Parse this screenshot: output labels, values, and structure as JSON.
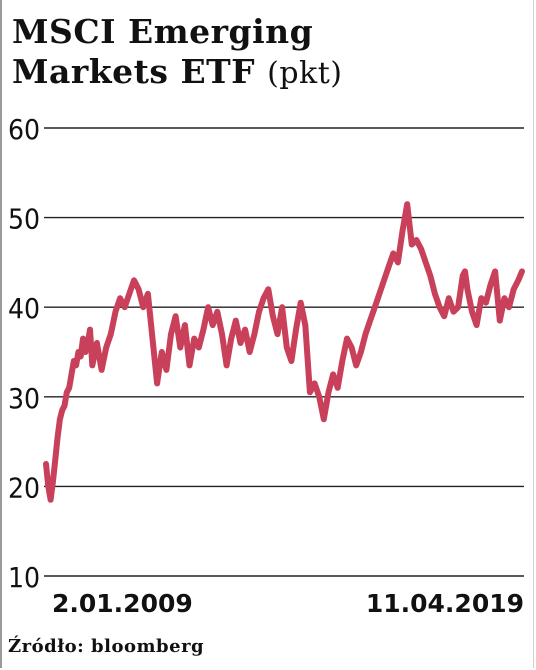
{
  "title": {
    "line1": "MSCI Emerging",
    "line2": "Markets ETF",
    "unit": "(pkt)"
  },
  "source": "Źródło: bloomberg",
  "chart_data": {
    "type": "line",
    "ylim": [
      10,
      60
    ],
    "yticks": [
      "60",
      "50",
      "40",
      "30",
      "20",
      "10"
    ],
    "ytick_values": [
      60,
      50,
      40,
      30,
      20,
      10
    ],
    "x_labels": [
      "2.01.2009",
      "11.04.2019"
    ],
    "grid": true,
    "line_color": "#c8405a",
    "series": [
      {
        "x": [
          2009.0,
          2009.05,
          2009.1,
          2009.15,
          2009.2,
          2009.25,
          2009.3,
          2009.35,
          2009.4,
          2009.45,
          2009.5,
          2009.55,
          2009.6,
          2009.65,
          2009.7,
          2009.75,
          2009.8,
          2009.85,
          2009.9,
          2009.95,
          2010.0,
          2010.1,
          2010.2,
          2010.3,
          2010.4,
          2010.5,
          2010.6,
          2010.7,
          2010.8,
          2010.9,
          2011.0,
          2011.1,
          2011.2,
          2011.3,
          2011.4,
          2011.5,
          2011.6,
          2011.7,
          2011.8,
          2011.9,
          2012.0,
          2012.1,
          2012.2,
          2012.3,
          2012.4,
          2012.5,
          2012.6,
          2012.7,
          2012.8,
          2012.9,
          2013.0,
          2013.1,
          2013.2,
          2013.3,
          2013.4,
          2013.5,
          2013.6,
          2013.7,
          2013.8,
          2013.9,
          2014.0,
          2014.1,
          2014.2,
          2014.3,
          2014.4,
          2014.5,
          2014.6,
          2014.7,
          2014.8,
          2014.9,
          2015.0,
          2015.1,
          2015.2,
          2015.3,
          2015.4,
          2015.5,
          2015.6,
          2015.7,
          2015.8,
          2015.9,
          2016.0,
          2016.1,
          2016.2,
          2016.3,
          2016.4,
          2016.5,
          2016.6,
          2016.7,
          2016.8,
          2016.9,
          2017.0,
          2017.1,
          2017.2,
          2017.3,
          2017.4,
          2017.5,
          2017.6,
          2017.7,
          2017.8,
          2017.9,
          2018.0,
          2018.05,
          2018.1,
          2018.2,
          2018.3,
          2018.4,
          2018.5,
          2018.6,
          2018.7,
          2018.8,
          2018.9,
          2019.0,
          2019.1,
          2019.2,
          2019.28
        ],
        "y": [
          22.5,
          20.0,
          18.5,
          20.5,
          23.0,
          25.5,
          27.5,
          28.5,
          29.0,
          30.5,
          31.0,
          32.5,
          34.0,
          33.5,
          35.0,
          34.5,
          36.5,
          35.0,
          36.0,
          37.5,
          33.5,
          36.0,
          33.0,
          35.5,
          37.0,
          39.5,
          41.0,
          40.0,
          41.5,
          43.0,
          42.0,
          40.0,
          41.5,
          36.5,
          31.5,
          35.0,
          33.0,
          37.0,
          39.0,
          35.5,
          38.0,
          33.5,
          36.5,
          35.5,
          37.5,
          40.0,
          38.0,
          39.5,
          37.0,
          33.5,
          36.5,
          38.5,
          36.0,
          37.5,
          35.0,
          37.0,
          39.5,
          41.0,
          42.0,
          39.0,
          37.0,
          40.0,
          35.5,
          34.0,
          37.5,
          40.5,
          38.0,
          30.5,
          31.5,
          30.0,
          27.5,
          30.5,
          32.5,
          31.0,
          34.0,
          36.5,
          35.5,
          33.5,
          35.0,
          37.0,
          38.5,
          40.0,
          41.5,
          43.0,
          44.5,
          46.0,
          45.0,
          48.5,
          51.5,
          47.0,
          47.5,
          46.5,
          45.0,
          43.5,
          41.5,
          40.0,
          39.0,
          41.0,
          39.5,
          40.0,
          43.5,
          44.0,
          42.0,
          39.5,
          38.0,
          41.0,
          40.5,
          42.5,
          44.0,
          38.5,
          41.0,
          40.0,
          42.0,
          43.0,
          44.0
        ]
      }
    ]
  }
}
